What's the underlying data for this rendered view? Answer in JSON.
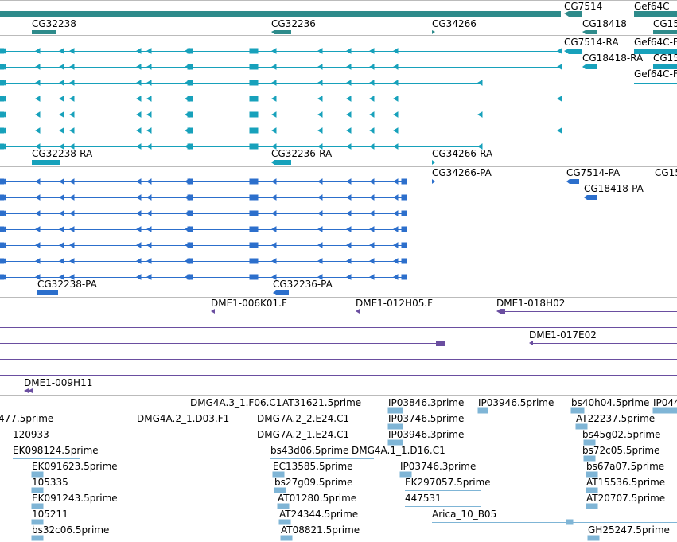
{
  "colors": {
    "gene": "#2e8b8b",
    "transcript": "#17a1bb",
    "protein": "#2c6fcc",
    "clone": "#6a4ea0",
    "est": "#7fb5d6",
    "divider": "#bbbbbb"
  },
  "gene_track": {
    "labels": [
      "CG7514",
      "Gef64C",
      "CG32238",
      "CG32236",
      "CG34266",
      "CG18418",
      "CG15"
    ]
  },
  "transcript_track": {
    "labels": [
      "CG7514-RA",
      "Gef64C-F",
      "CG18418-RA",
      "CG15",
      "Gef64C-F",
      "CG32238-RA",
      "CG32236-RA",
      "CG34266-RA"
    ]
  },
  "protein_track": {
    "labels": [
      "CG34266-PA",
      "CG7514-PA",
      "CG15",
      "CG18418-PA",
      "CG32238-PA",
      "CG32236-PA"
    ]
  },
  "clone_track": {
    "labels": [
      "DME1-006K01.F",
      "DME1-012H05.F",
      "DME1-018H02",
      "DME1-017E02",
      "DME1-009H11"
    ]
  },
  "est_track": {
    "labels": [
      "DMG4A.3_1.F06.C1",
      "AT31621.5prime",
      "IP03846.3prime",
      "IP03946.5prime",
      "bs40h04.5prime",
      "IP044",
      "477.5prime",
      "DMG4A.2_1.D03.F1",
      "DMG7A.2_2.E24.C1",
      "IP03746.5prime",
      "AT22237.5prime",
      "120933",
      "DMG7A.2_1.E24.C1",
      "IP03946.3prime",
      "bs45g02.5prime",
      "EK098124.5prime",
      "bs43d06.5prime",
      "DMG4A.1_1.D16.C1",
      "bs72c05.5prime",
      "EK091623.5prime",
      "EC13585.5prime",
      "IP03746.3prime",
      "bs67a07.5prime",
      "105335",
      "bs27g09.5prime",
      "EK297057.5prime",
      "AT15536.5prime",
      "EK091243.5prime",
      "AT01280.5prime",
      "447531",
      "AT20707.5prime",
      "105211",
      "AT24344.5prime",
      "Arica_10_B05",
      "bs32c06.5prime",
      "AT08821.5prime",
      "GH25247.5prime"
    ]
  }
}
